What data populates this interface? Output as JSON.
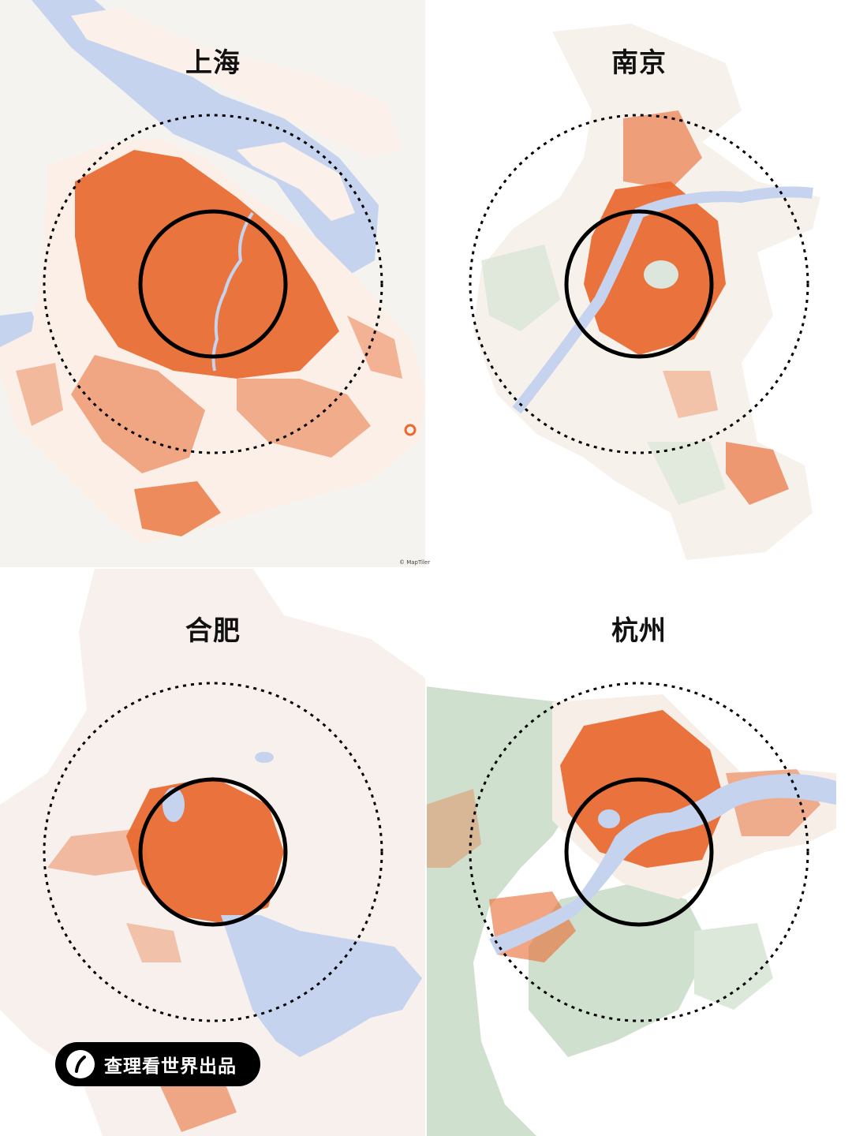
{
  "panels": {
    "shanghai": {
      "label": "上海"
    },
    "nanjing": {
      "label": "南京"
    },
    "hefei": {
      "label": "合肥"
    },
    "hangzhou": {
      "label": "杭州"
    }
  },
  "attribution": "© MapTiler",
  "brand": {
    "text": "查理看世界出品",
    "icon": "slash-logo-icon"
  },
  "colors": {
    "urban": "#e8692f",
    "water": "#c5d3ee",
    "land": "#f4f3ef",
    "terrain": "#cfe0cf",
    "ring": "#000000"
  }
}
